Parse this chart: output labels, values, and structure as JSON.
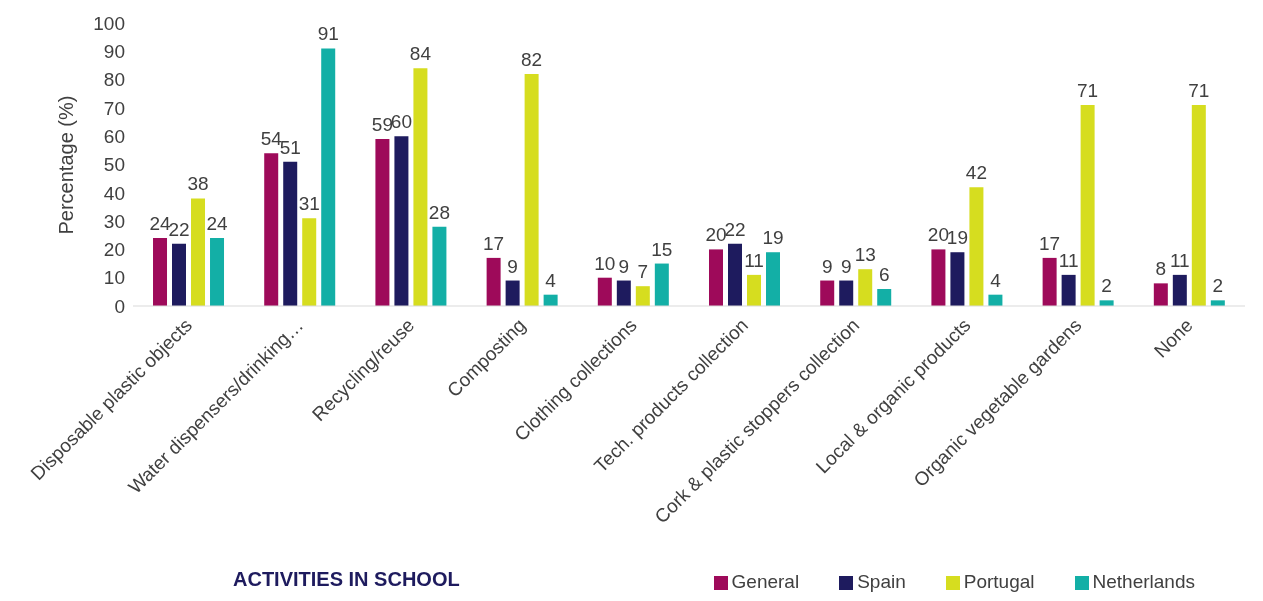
{
  "chart_data": {
    "type": "bar",
    "xlabel": "ACTIVITIES IN SCHOOL",
    "ylabel": "Percentage (%)",
    "categories": [
      "Disposable plastic objects",
      "Water dispensers/drinking…",
      "Recycling/reuse",
      "Composting",
      "Clothing collections",
      "Tech. products collection",
      "Cork & plastic stoppers collection",
      "Local & organic products",
      "Organic vegetable gardens",
      "None"
    ],
    "series": [
      {
        "name": "General",
        "color": "#9e0a5a",
        "values": [
          24,
          54,
          59,
          17,
          10,
          20,
          9,
          20,
          17,
          8
        ]
      },
      {
        "name": "Spain",
        "color": "#1e1b5e",
        "values": [
          22,
          51,
          60,
          9,
          9,
          22,
          9,
          19,
          11,
          11
        ]
      },
      {
        "name": "Portugal",
        "color": "#d6dd1f",
        "values": [
          38,
          31,
          84,
          82,
          7,
          11,
          13,
          42,
          71,
          71
        ]
      },
      {
        "name": "Netherlands",
        "color": "#13afa6",
        "values": [
          24,
          91,
          28,
          4,
          15,
          19,
          6,
          4,
          2,
          2
        ]
      }
    ],
    "ylim": [
      0,
      100
    ],
    "yticks": [
      0,
      10,
      20,
      30,
      40,
      50,
      60,
      70,
      80,
      90,
      100
    ],
    "grid": false,
    "legend": "bottom right",
    "data_labels": true
  }
}
